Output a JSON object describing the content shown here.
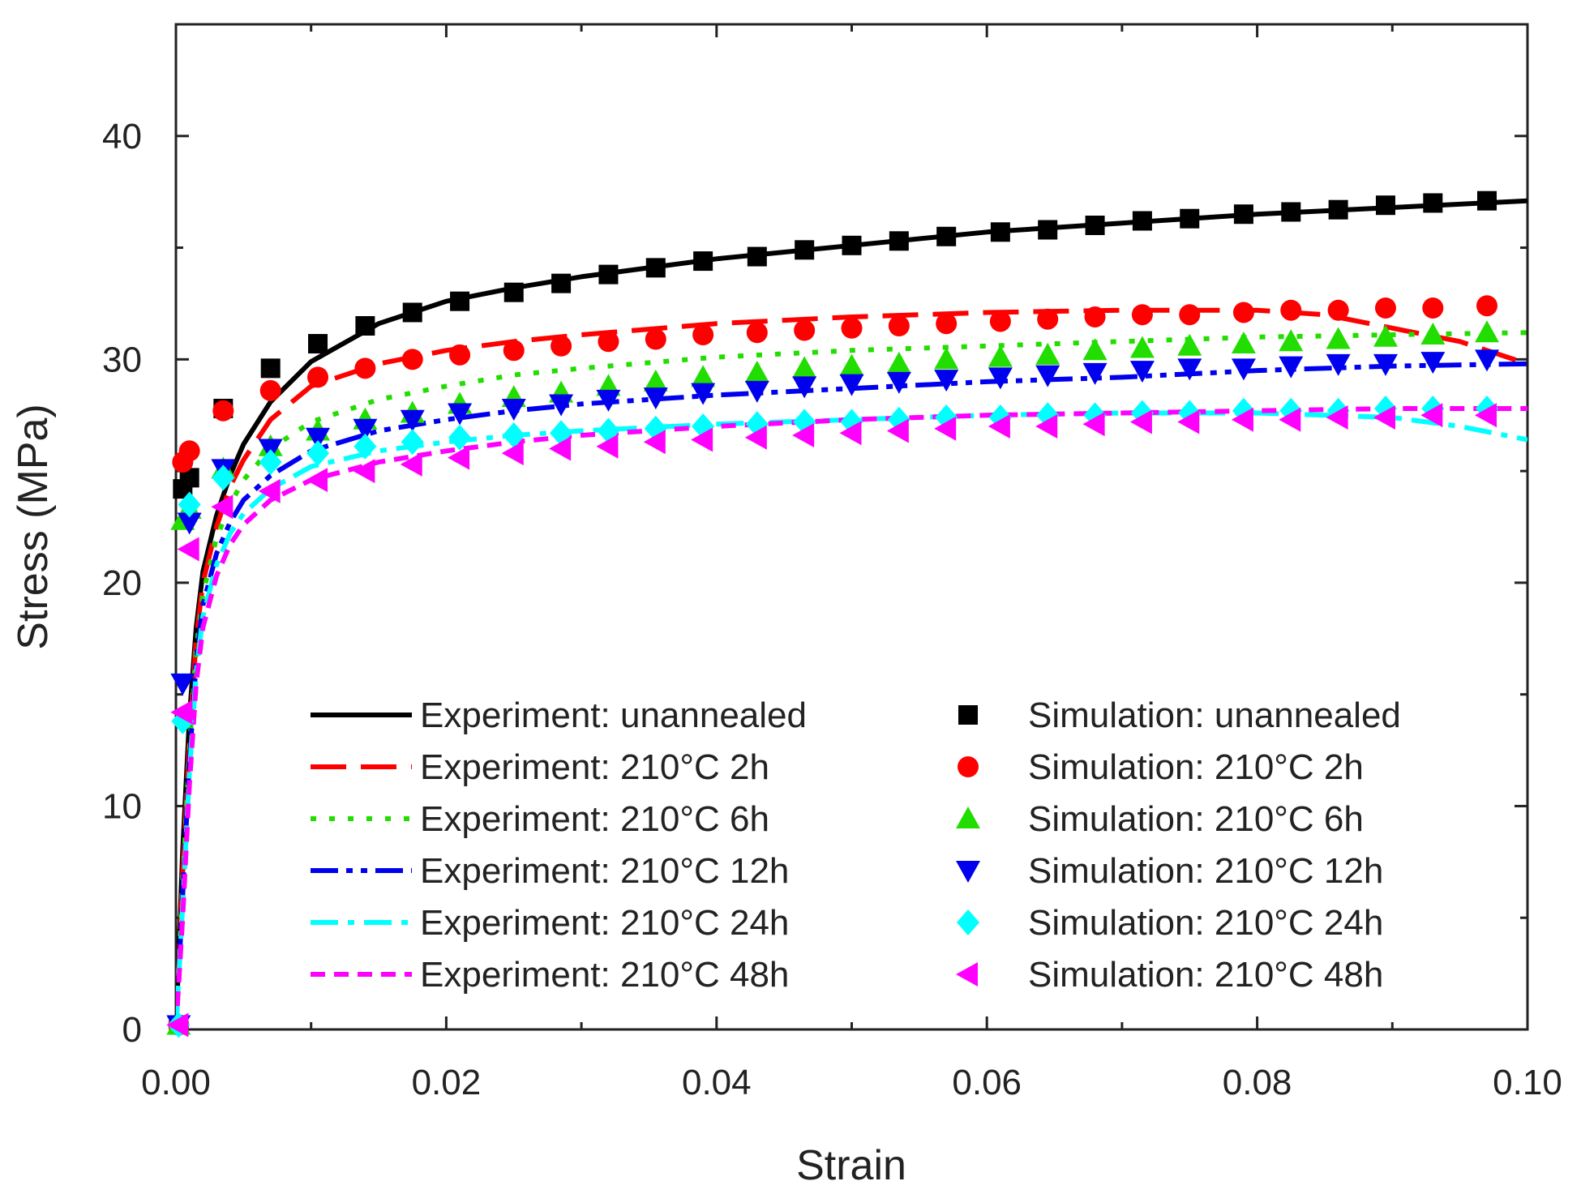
{
  "chart_data": {
    "type": "line",
    "xlabel": "Strain",
    "ylabel": "Stress (MPa)",
    "xlim": [
      0,
      0.1
    ],
    "ylim": [
      0,
      45
    ],
    "xticks": [
      0,
      0.02,
      0.04,
      0.06,
      0.08,
      0.1
    ],
    "xtick_labels": [
      "0.00",
      "0.02",
      "0.04",
      "0.06",
      "0.08",
      "0.10"
    ],
    "yticks": [
      0,
      10,
      20,
      30,
      40
    ],
    "ytick_labels": [
      "0",
      "10",
      "20",
      "30",
      "40"
    ],
    "grid": false,
    "legend_position": "bottom",
    "series": [
      {
        "name": "Experiment: unannealed",
        "kind": "line",
        "style": "solid",
        "color": "#000000",
        "x": [
          0,
          0.0005,
          0.001,
          0.0015,
          0.002,
          0.003,
          0.004,
          0.005,
          0.007,
          0.01,
          0.015,
          0.02,
          0.025,
          0.03,
          0.04,
          0.05,
          0.06,
          0.07,
          0.08,
          0.09,
          0.1
        ],
        "y": [
          0,
          8,
          14,
          18,
          20.5,
          23,
          24.8,
          26.2,
          28.1,
          29.9,
          31.6,
          32.6,
          33.2,
          33.7,
          34.5,
          35.1,
          35.7,
          36.1,
          36.5,
          36.8,
          37.1
        ]
      },
      {
        "name": "Experiment: 210°C 2h",
        "kind": "line",
        "style": "dash",
        "color": "#ff0000",
        "x": [
          0,
          0.0005,
          0.001,
          0.0015,
          0.002,
          0.003,
          0.004,
          0.005,
          0.007,
          0.01,
          0.015,
          0.02,
          0.025,
          0.03,
          0.04,
          0.05,
          0.06,
          0.07,
          0.08,
          0.085,
          0.09,
          0.095,
          0.1
        ],
        "y": [
          0,
          7,
          13,
          17.5,
          20,
          22.5,
          24.3,
          25.5,
          27.3,
          28.8,
          29.8,
          30.4,
          30.8,
          31.1,
          31.6,
          31.9,
          32.1,
          32.2,
          32.2,
          32,
          31.4,
          30.8,
          29.8
        ]
      },
      {
        "name": "Experiment: 210°C 6h",
        "kind": "line",
        "style": "dot",
        "color": "#22dd00",
        "x": [
          0,
          0.0005,
          0.001,
          0.0015,
          0.002,
          0.003,
          0.004,
          0.005,
          0.007,
          0.01,
          0.015,
          0.02,
          0.025,
          0.03,
          0.04,
          0.05,
          0.06,
          0.07,
          0.08,
          0.09,
          0.1
        ],
        "y": [
          0,
          6.5,
          12.5,
          17,
          19.5,
          22,
          23.5,
          24.6,
          26,
          27.2,
          28.2,
          28.8,
          29.3,
          29.6,
          30.1,
          30.4,
          30.6,
          30.8,
          31,
          31.1,
          31.2
        ]
      },
      {
        "name": "Experiment: 210°C 12h",
        "kind": "line",
        "style": "dashdotdot",
        "color": "#0000ee",
        "x": [
          0,
          0.0005,
          0.001,
          0.0015,
          0.002,
          0.003,
          0.004,
          0.005,
          0.007,
          0.01,
          0.015,
          0.02,
          0.025,
          0.03,
          0.04,
          0.05,
          0.06,
          0.07,
          0.08,
          0.09,
          0.1
        ],
        "y": [
          0,
          6,
          12,
          16.5,
          19,
          21.3,
          22.7,
          23.7,
          24.8,
          25.9,
          26.8,
          27.3,
          27.7,
          28,
          28.4,
          28.7,
          29,
          29.2,
          29.5,
          29.7,
          29.8
        ]
      },
      {
        "name": "Experiment: 210°C 24h",
        "kind": "line",
        "style": "dashdot",
        "color": "#00ffff",
        "x": [
          0,
          0.0005,
          0.001,
          0.0015,
          0.002,
          0.003,
          0.004,
          0.005,
          0.007,
          0.01,
          0.015,
          0.02,
          0.025,
          0.03,
          0.04,
          0.05,
          0.06,
          0.07,
          0.08,
          0.09,
          0.095,
          0.1
        ],
        "y": [
          0,
          5.5,
          11.5,
          16,
          18.5,
          20.8,
          22.2,
          23.1,
          24.2,
          25.2,
          25.9,
          26.3,
          26.6,
          26.8,
          27.1,
          27.3,
          27.5,
          27.6,
          27.6,
          27.4,
          27,
          26.4
        ]
      },
      {
        "name": "Experiment: 210°C 48h",
        "kind": "line",
        "style": "shortdash",
        "color": "#ff00ff",
        "x": [
          0,
          0.0005,
          0.001,
          0.0015,
          0.002,
          0.003,
          0.004,
          0.005,
          0.007,
          0.01,
          0.015,
          0.02,
          0.025,
          0.03,
          0.04,
          0.05,
          0.06,
          0.07,
          0.08,
          0.09,
          0.1
        ],
        "y": [
          0,
          5,
          11,
          15.5,
          18,
          20.3,
          21.7,
          22.6,
          23.7,
          24.6,
          25.4,
          25.9,
          26.3,
          26.6,
          27,
          27.3,
          27.5,
          27.6,
          27.7,
          27.8,
          27.8
        ]
      },
      {
        "name": "Simulation: unannealed",
        "kind": "marker",
        "marker": "square",
        "color": "#000000",
        "x": [
          0.0002,
          0.0005,
          0.001,
          0.0035,
          0.007,
          0.0105,
          0.014,
          0.0175,
          0.021,
          0.025,
          0.0285,
          0.032,
          0.0355,
          0.039,
          0.043,
          0.0465,
          0.05,
          0.0535,
          0.057,
          0.061,
          0.0645,
          0.068,
          0.0715,
          0.075,
          0.079,
          0.0825,
          0.086,
          0.0895,
          0.093,
          0.097
        ],
        "y": [
          0.2,
          24.2,
          24.7,
          27.8,
          29.6,
          30.7,
          31.5,
          32.1,
          32.6,
          33,
          33.4,
          33.8,
          34.1,
          34.4,
          34.6,
          34.9,
          35.1,
          35.3,
          35.5,
          35.7,
          35.8,
          36,
          36.2,
          36.3,
          36.5,
          36.6,
          36.7,
          36.9,
          37,
          37.1
        ]
      },
      {
        "name": "Simulation: 210°C 2h",
        "kind": "marker",
        "marker": "circle",
        "color": "#ff0000",
        "x": [
          0.0002,
          0.0005,
          0.001,
          0.0035,
          0.007,
          0.0105,
          0.014,
          0.0175,
          0.021,
          0.025,
          0.0285,
          0.032,
          0.0355,
          0.039,
          0.043,
          0.0465,
          0.05,
          0.0535,
          0.057,
          0.061,
          0.0645,
          0.068,
          0.0715,
          0.075,
          0.079,
          0.0825,
          0.086,
          0.0895,
          0.093,
          0.097
        ],
        "y": [
          0.2,
          25.4,
          25.9,
          27.7,
          28.6,
          29.2,
          29.6,
          30,
          30.2,
          30.4,
          30.6,
          30.8,
          30.9,
          31.1,
          31.2,
          31.3,
          31.4,
          31.5,
          31.6,
          31.7,
          31.8,
          31.9,
          32,
          32,
          32.1,
          32.2,
          32.2,
          32.3,
          32.3,
          32.4
        ]
      },
      {
        "name": "Simulation: 210°C 6h",
        "kind": "marker",
        "marker": "triangle-up",
        "color": "#22dd00",
        "x": [
          0.0002,
          0.0005,
          0.001,
          0.0035,
          0.007,
          0.0105,
          0.014,
          0.0175,
          0.021,
          0.025,
          0.0285,
          0.032,
          0.0355,
          0.039,
          0.043,
          0.0465,
          0.05,
          0.0535,
          0.057,
          0.061,
          0.0645,
          0.068,
          0.0715,
          0.075,
          0.079,
          0.0825,
          0.086,
          0.0895,
          0.093,
          0.097
        ],
        "y": [
          0.2,
          22.8,
          23.3,
          25.1,
          26.1,
          26.8,
          27.3,
          27.6,
          28,
          28.3,
          28.5,
          28.8,
          29,
          29.2,
          29.4,
          29.6,
          29.7,
          29.8,
          30,
          30.1,
          30.2,
          30.4,
          30.5,
          30.6,
          30.7,
          30.8,
          30.9,
          31,
          31.1,
          31.2
        ]
      },
      {
        "name": "Simulation: 210°C 12h",
        "kind": "marker",
        "marker": "triangle-down",
        "color": "#0000ee",
        "x": [
          0.0002,
          0.0005,
          0.001,
          0.0035,
          0.007,
          0.0105,
          0.014,
          0.0175,
          0.021,
          0.025,
          0.0285,
          0.032,
          0.0355,
          0.039,
          0.043,
          0.0465,
          0.05,
          0.0535,
          0.057,
          0.061,
          0.0645,
          0.068,
          0.0715,
          0.075,
          0.079,
          0.0825,
          0.086,
          0.0895,
          0.093,
          0.097
        ],
        "y": [
          0.2,
          15.5,
          22.7,
          25.1,
          26,
          26.5,
          26.9,
          27.3,
          27.6,
          27.8,
          28,
          28.2,
          28.3,
          28.5,
          28.6,
          28.8,
          28.9,
          29,
          29.1,
          29.2,
          29.3,
          29.4,
          29.5,
          29.6,
          29.6,
          29.7,
          29.8,
          29.8,
          29.9,
          30
        ]
      },
      {
        "name": "Simulation: 210°C 24h",
        "kind": "marker",
        "marker": "diamond",
        "color": "#00ffff",
        "x": [
          0.0002,
          0.0005,
          0.001,
          0.0035,
          0.007,
          0.0105,
          0.014,
          0.0175,
          0.021,
          0.025,
          0.0285,
          0.032,
          0.0355,
          0.039,
          0.043,
          0.0465,
          0.05,
          0.0535,
          0.057,
          0.061,
          0.0645,
          0.068,
          0.0715,
          0.075,
          0.079,
          0.0825,
          0.086,
          0.0895,
          0.093,
          0.097
        ],
        "y": [
          0.2,
          13.8,
          23.5,
          24.7,
          25.4,
          25.8,
          26.1,
          26.3,
          26.5,
          26.6,
          26.7,
          26.8,
          26.9,
          27,
          27.1,
          27.2,
          27.2,
          27.3,
          27.4,
          27.4,
          27.5,
          27.5,
          27.6,
          27.6,
          27.7,
          27.7,
          27.7,
          27.8,
          27.8,
          27.8
        ]
      },
      {
        "name": "Simulation: 210°C 48h",
        "kind": "marker",
        "marker": "triangle-left",
        "color": "#ff00ff",
        "x": [
          0.0002,
          0.0005,
          0.001,
          0.0035,
          0.007,
          0.0105,
          0.014,
          0.0175,
          0.021,
          0.025,
          0.0285,
          0.032,
          0.0355,
          0.039,
          0.043,
          0.0465,
          0.05,
          0.0535,
          0.057,
          0.061,
          0.0645,
          0.068,
          0.0715,
          0.075,
          0.079,
          0.0825,
          0.086,
          0.0895,
          0.093,
          0.097
        ],
        "y": [
          0.2,
          14.2,
          21.5,
          23.4,
          24.1,
          24.6,
          25,
          25.3,
          25.6,
          25.8,
          26,
          26.1,
          26.3,
          26.4,
          26.5,
          26.6,
          26.7,
          26.8,
          26.9,
          27,
          27,
          27.1,
          27.2,
          27.2,
          27.3,
          27.3,
          27.4,
          27.4,
          27.5,
          27.5
        ]
      }
    ]
  }
}
